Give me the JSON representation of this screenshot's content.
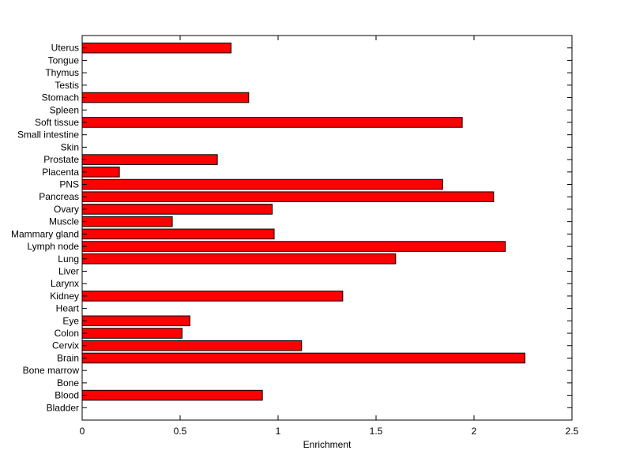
{
  "chart_data": {
    "type": "bar",
    "orientation": "horizontal",
    "title": "",
    "xlabel": "Enrichment",
    "ylabel": "",
    "xlim": [
      0,
      2.5
    ],
    "xticks": [
      0,
      0.5,
      1,
      1.5,
      2,
      2.5
    ],
    "xtick_labels": [
      "0",
      "0.5",
      "1",
      "1.5",
      "2",
      "2.5"
    ],
    "grid": false,
    "bar_color": "#ff0000",
    "bar_edge_color": "#000000",
    "categories": [
      "Bladder",
      "Blood",
      "Bone",
      "Bone marrow",
      "Brain",
      "Cervix",
      "Colon",
      "Eye",
      "Heart",
      "Kidney",
      "Larynx",
      "Liver",
      "Lung",
      "Lymph node",
      "Mammary gland",
      "Muscle",
      "Ovary",
      "Pancreas",
      "PNS",
      "Placenta",
      "Prostate",
      "Skin",
      "Small intestine",
      "Soft tissue",
      "Spleen",
      "Stomach",
      "Testis",
      "Thymus",
      "Tongue",
      "Uterus"
    ],
    "values": [
      0,
      0.92,
      0,
      0,
      2.26,
      1.12,
      0.51,
      0.55,
      0,
      1.33,
      0,
      0,
      1.6,
      2.16,
      0.98,
      0.46,
      0.97,
      2.1,
      1.84,
      0.19,
      0.69,
      0,
      0,
      1.94,
      0,
      0.85,
      0,
      0,
      0,
      0.76
    ]
  }
}
